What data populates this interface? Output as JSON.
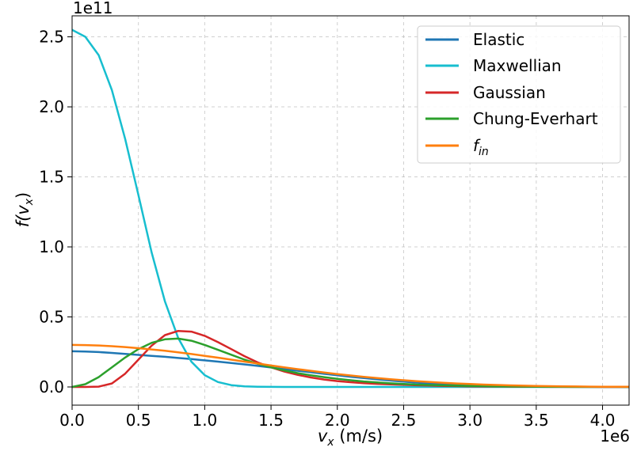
{
  "chart_data": {
    "type": "line",
    "title": "",
    "xlabel_var": "v",
    "xlabel_sub": "x",
    "xlabel_unit": " (m/s)",
    "ylabel_prefix": "f(",
    "ylabel_var": "v",
    "ylabel_sub": "x",
    "ylabel_suffix": ")",
    "x_scale_label": "1e6",
    "y_scale_label": "1e11",
    "xlim": [
      0,
      4.2
    ],
    "ylim": [
      -0.13,
      2.65
    ],
    "xticks": [
      0.0,
      0.5,
      1.0,
      1.5,
      2.0,
      2.5,
      3.0,
      3.5,
      4.0
    ],
    "xtick_labels": [
      "0.0",
      "0.5",
      "1.0",
      "1.5",
      "2.0",
      "2.5",
      "3.0",
      "3.5",
      "4.0"
    ],
    "yticks": [
      0.0,
      0.5,
      1.0,
      1.5,
      2.0,
      2.5
    ],
    "ytick_labels": [
      "0.0",
      "0.5",
      "1.0",
      "1.5",
      "2.0",
      "2.5"
    ],
    "grid": true,
    "legend_position": "top-right",
    "x": [
      0.0,
      0.1,
      0.2,
      0.3,
      0.4,
      0.5,
      0.6,
      0.7,
      0.8,
      0.9,
      1.0,
      1.1,
      1.2,
      1.3,
      1.4,
      1.5,
      1.6,
      1.7,
      1.8,
      1.9,
      2.0,
      2.1,
      2.2,
      2.3,
      2.4,
      2.5,
      2.6,
      2.7,
      2.8,
      2.9,
      3.0,
      3.1,
      3.2,
      3.3,
      3.4,
      3.5,
      3.6,
      3.7,
      3.8,
      3.9,
      4.0,
      4.1,
      4.2
    ],
    "series": [
      {
        "name": "Elastic",
        "color": "#1f77b4",
        "values": [
          0.255,
          0.253,
          0.249,
          0.243,
          0.236,
          0.229,
          0.222,
          0.215,
          0.207,
          0.199,
          0.19,
          0.181,
          0.171,
          0.161,
          0.15,
          0.139,
          0.127,
          0.116,
          0.105,
          0.094,
          0.083,
          0.073,
          0.063,
          0.054,
          0.046,
          0.038,
          0.031,
          0.025,
          0.02,
          0.016,
          0.012,
          0.009,
          0.007,
          0.005,
          0.004,
          0.003,
          0.002,
          0.0015,
          0.001,
          0.0007,
          0.0005,
          0.0003,
          0.0002
        ]
      },
      {
        "name": "Maxwellian",
        "color": "#17becf",
        "values": [
          2.55,
          2.5,
          2.37,
          2.12,
          1.77,
          1.37,
          0.96,
          0.61,
          0.35,
          0.18,
          0.084,
          0.035,
          0.013,
          0.0045,
          0.0014,
          0.0004,
          0.0001,
          0.0,
          0.0,
          0.0,
          0.0,
          0.0,
          0.0,
          0.0,
          0.0,
          0.0,
          0.0,
          0.0,
          0.0,
          0.0,
          0.0,
          0.0,
          0.0,
          0.0,
          0.0,
          0.0,
          0.0,
          0.0,
          0.0,
          0.0,
          0.0,
          0.0,
          0.0
        ]
      },
      {
        "name": "Gaussian",
        "color": "#d62728",
        "values": [
          0.0,
          0.0,
          0.002,
          0.025,
          0.095,
          0.195,
          0.295,
          0.37,
          0.4,
          0.395,
          0.365,
          0.32,
          0.27,
          0.22,
          0.175,
          0.14,
          0.11,
          0.087,
          0.068,
          0.053,
          0.042,
          0.034,
          0.027,
          0.022,
          0.018,
          0.015,
          0.012,
          0.0095,
          0.0075,
          0.006,
          0.0045,
          0.0035,
          0.0027,
          0.002,
          0.0015,
          0.0011,
          0.0008,
          0.0006,
          0.0004,
          0.0003,
          0.0002,
          0.0001,
          0.0001
        ]
      },
      {
        "name": "Chung-Everhart",
        "color": "#2ca02c",
        "values": [
          0.0,
          0.02,
          0.07,
          0.14,
          0.21,
          0.27,
          0.315,
          0.34,
          0.345,
          0.33,
          0.3,
          0.265,
          0.23,
          0.195,
          0.165,
          0.14,
          0.118,
          0.099,
          0.083,
          0.07,
          0.058,
          0.048,
          0.039,
          0.032,
          0.026,
          0.021,
          0.017,
          0.014,
          0.011,
          0.009,
          0.007,
          0.006,
          0.0045,
          0.0035,
          0.0027,
          0.002,
          0.0015,
          0.0011,
          0.0008,
          0.0006,
          0.0004,
          0.0003,
          0.0002
        ]
      },
      {
        "name": "f_in",
        "color": "#ff7f0e",
        "values": [
          0.3,
          0.299,
          0.296,
          0.291,
          0.285,
          0.277,
          0.268,
          0.258,
          0.247,
          0.235,
          0.222,
          0.209,
          0.195,
          0.181,
          0.167,
          0.153,
          0.14,
          0.127,
          0.115,
          0.103,
          0.092,
          0.082,
          0.072,
          0.063,
          0.055,
          0.048,
          0.041,
          0.035,
          0.03,
          0.025,
          0.021,
          0.017,
          0.014,
          0.011,
          0.009,
          0.007,
          0.0055,
          0.0043,
          0.0033,
          0.0025,
          0.0019,
          0.0014,
          0.001
        ]
      }
    ],
    "legend_labels": [
      {
        "text": "Elastic"
      },
      {
        "text": "Maxwellian"
      },
      {
        "text": "Gaussian"
      },
      {
        "text": "Chung-Everhart"
      },
      {
        "text_main": "f",
        "text_sub": "in"
      }
    ]
  }
}
